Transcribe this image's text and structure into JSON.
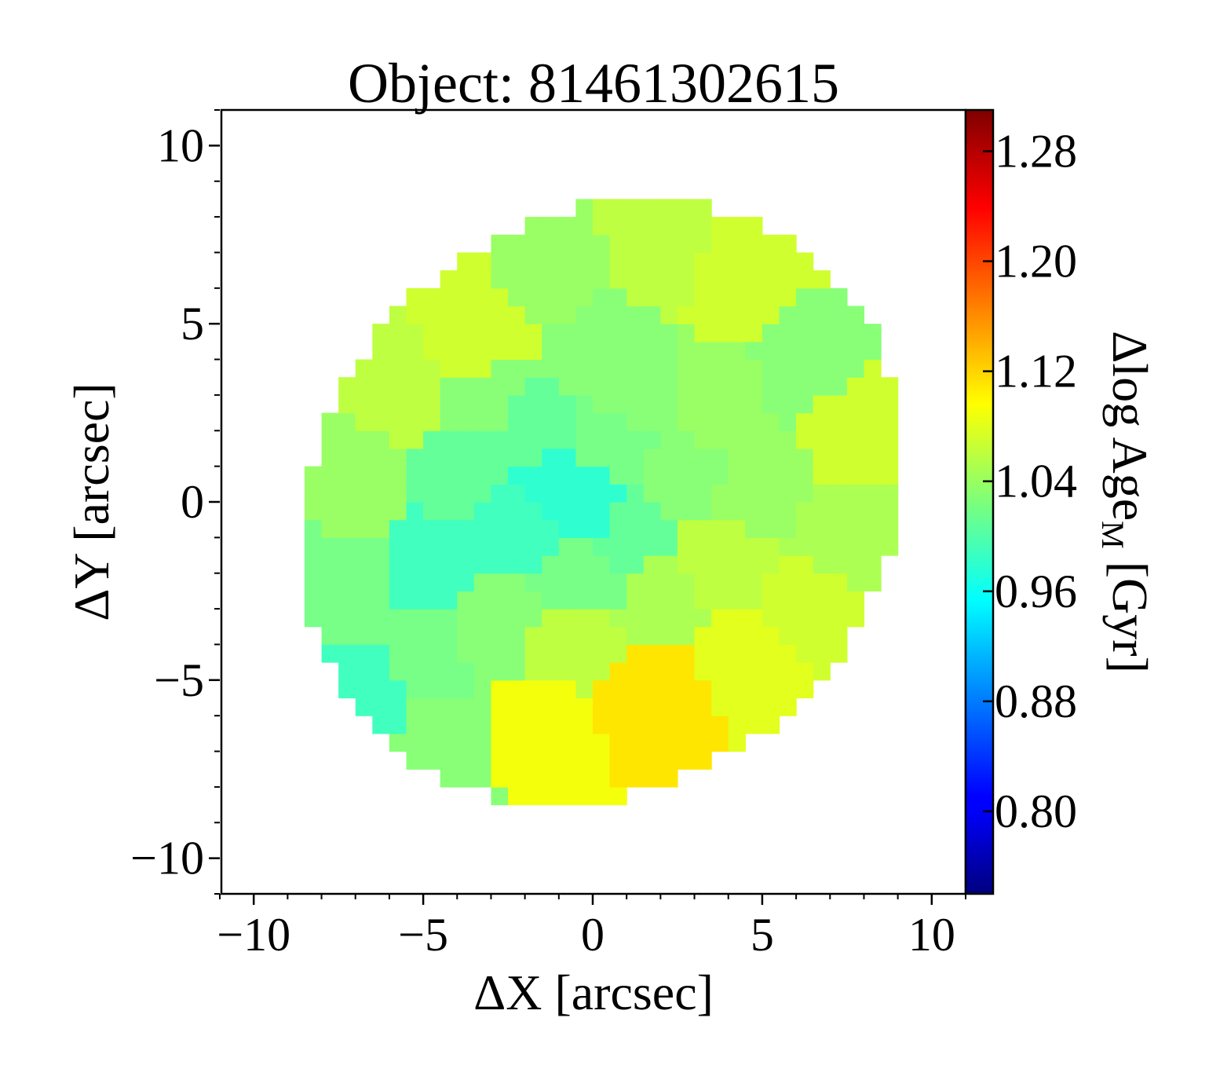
{
  "chart_data": {
    "type": "heatmap",
    "title": "Object: 81461302615",
    "xlabel": "ΔX [arcsec]",
    "ylabel": "ΔY [arcsec]",
    "xlim": [
      -11,
      11
    ],
    "ylim": [
      -11,
      11
    ],
    "x_ticks": [
      {
        "value": -10,
        "label": "−10"
      },
      {
        "value": -5,
        "label": "−5"
      },
      {
        "value": 0,
        "label": "0"
      },
      {
        "value": 5,
        "label": "5"
      },
      {
        "value": 10,
        "label": "10"
      }
    ],
    "y_ticks": [
      {
        "value": 10,
        "label": "10"
      },
      {
        "value": 5,
        "label": "5"
      },
      {
        "value": 0,
        "label": "0"
      },
      {
        "value": -5,
        "label": "−5"
      },
      {
        "value": -10,
        "label": "−10"
      }
    ],
    "colorbar": {
      "label_main": "Δlog Age",
      "label_sub": "M",
      "label_unit": " [Gyr]",
      "range": [
        0.74,
        1.31
      ],
      "colormap": "jet",
      "ticks": [
        {
          "value": 1.28,
          "label": "1.28"
        },
        {
          "value": 1.2,
          "label": "1.20"
        },
        {
          "value": 1.12,
          "label": "1.12"
        },
        {
          "value": 1.04,
          "label": "1.04"
        },
        {
          "value": 0.96,
          "label": "0.96"
        },
        {
          "value": 0.88,
          "label": "0.88"
        },
        {
          "value": 0.8,
          "label": "0.80"
        }
      ]
    },
    "map": {
      "center": [
        0.3,
        0.0
      ],
      "semi_axes": [
        9.3,
        8.0
      ],
      "rotation_deg": 35,
      "pixel_size": 0.5,
      "bins": [
        {
          "x": -3.5,
          "y": 4.5,
          "value": 1.07
        },
        {
          "x": -1.0,
          "y": 6.5,
          "value": 1.04
        },
        {
          "x": 1.8,
          "y": 7.0,
          "value": 1.06
        },
        {
          "x": 4.5,
          "y": 6.0,
          "value": 1.07
        },
        {
          "x": 6.3,
          "y": 4.0,
          "value": 1.03
        },
        {
          "x": 7.7,
          "y": 2.0,
          "value": 1.07
        },
        {
          "x": 7.3,
          "y": -0.8,
          "value": 1.05
        },
        {
          "x": 6.3,
          "y": -2.8,
          "value": 1.07
        },
        {
          "x": 4.5,
          "y": -4.3,
          "value": 1.08
        },
        {
          "x": 1.8,
          "y": -5.6,
          "value": 1.11
        },
        {
          "x": -1.5,
          "y": -6.5,
          "value": 1.09
        },
        {
          "x": -4.3,
          "y": -6.8,
          "value": 1.03
        },
        {
          "x": -6.8,
          "y": -5.3,
          "value": 0.99
        },
        {
          "x": -7.5,
          "y": -2.5,
          "value": 1.02
        },
        {
          "x": -7.0,
          "y": 0.7,
          "value": 1.04
        },
        {
          "x": -5.6,
          "y": 3.1,
          "value": 1.06
        },
        {
          "x": -3.1,
          "y": 2.8,
          "value": 1.03
        },
        {
          "x": 3.6,
          "y": 2.8,
          "value": 1.04
        },
        {
          "x": 3.8,
          "y": -1.9,
          "value": 1.06
        },
        {
          "x": -4.6,
          "y": -1.9,
          "value": 0.99
        },
        {
          "x": 0.4,
          "y": 4.4,
          "value": 1.03
        },
        {
          "x": 0.0,
          "y": 0.0,
          "value": 0.98
        },
        {
          "x": -1.3,
          "y": 0.6,
          "value": 0.98
        },
        {
          "x": 1.1,
          "y": -0.7,
          "value": 1.01
        },
        {
          "x": 0.8,
          "y": 1.6,
          "value": 1.02
        },
        {
          "x": -2.2,
          "y": -0.6,
          "value": 0.99
        },
        {
          "x": 2.3,
          "y": 0.8,
          "value": 1.03
        },
        {
          "x": -0.3,
          "y": -2.2,
          "value": 1.02
        },
        {
          "x": 2.0,
          "y": -2.6,
          "value": 1.05
        },
        {
          "x": -1.9,
          "y": 2.0,
          "value": 1.01
        },
        {
          "x": -3.6,
          "y": 0.8,
          "value": 1.01
        },
        {
          "x": -3.0,
          "y": -3.3,
          "value": 1.03
        },
        {
          "x": -5.0,
          "y": -4.2,
          "value": 1.02
        },
        {
          "x": 5.2,
          "y": 0.4,
          "value": 1.04
        },
        {
          "x": -0.6,
          "y": -3.8,
          "value": 1.06
        },
        {
          "x": 1.4,
          "y": 2.9,
          "value": 1.03
        }
      ]
    }
  }
}
